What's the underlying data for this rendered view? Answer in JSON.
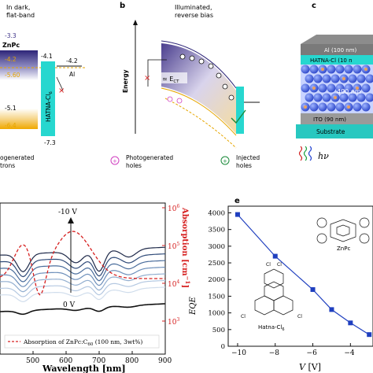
{
  "panel_a": {
    "title_line1": "In dark,",
    "title_line2": "flat-band",
    "level_top": "-3.3",
    "znpc_label": "ZnPc",
    "level_42_left": "-4.2",
    "level_60": "-5.60",
    "level_51": "-5.1",
    "level_64": "-6.4",
    "level_41": "-4.1",
    "level_42_right": "-4.2",
    "level_73": "-7.3",
    "al_label": "Al",
    "hatna_label": "HATNA-Cl",
    "hatna_sub": "6",
    "x_mark": "×",
    "colors": {
      "znpc_top": "#3a2f86",
      "gold": "#f0b000",
      "cyan": "#27d7cf"
    }
  },
  "panel_b": {
    "letter": "b",
    "title_line1": "Illuminated,",
    "title_line2": "reverse bias",
    "energy_label": "Energy",
    "ect_label": "≃ E",
    "ect_sub": "CT",
    "x_mark": "×"
  },
  "panel_c": {
    "letter": "c",
    "al": "Al (100 nm)",
    "hatna": "HATNA-Cl",
    "hatna_tail": " (10 n",
    "thickness": "400 nm",
    "ito": "ITO (90 nm)",
    "substrate": "Substrate",
    "hnu": "hν"
  },
  "legend": {
    "electrons": "ogenerated",
    "electrons2": "trons",
    "holes": "Photogenerated",
    "holes2": "holes",
    "injected": "Injected",
    "injected2": "holes"
  },
  "panel_d": {
    "chart_data": {
      "type": "line",
      "xlabel": "Wavelength [nm]",
      "xlim": [
        400,
        900
      ],
      "x_ticks": [
        "500",
        "600",
        "700",
        "800",
        "900"
      ],
      "ylabel_right": "Absorption [cm",
      "ylabel_right_sup": "−1",
      "ylabel_right_tail": "]",
      "right_ticks_base": "10",
      "right_ticks_exp": [
        "3",
        "4",
        "5",
        "6"
      ],
      "annotation_top": "-10 V",
      "annotation_bottom": "0 V",
      "legend_entry": "Absorption of ZnPc:C",
      "legend_sub": "60",
      "legend_tail": " (100 nm, 3wt%)",
      "series": [
        {
          "level": 0.86,
          "color": "#1f2a4a"
        },
        {
          "level": 0.78,
          "color": "#2f4a78"
        },
        {
          "level": 0.7,
          "color": "#4a6d9c"
        },
        {
          "level": 0.62,
          "color": "#6e90bb"
        },
        {
          "level": 0.54,
          "color": "#93afd0"
        },
        {
          "level": 0.46,
          "color": "#b4c8e1"
        },
        {
          "level": 0.38,
          "color": "#d0ddec"
        },
        {
          "level": 0.18,
          "color": "#111111"
        }
      ]
    }
  },
  "panel_e": {
    "letter": "e",
    "chart_data": {
      "type": "line",
      "x": [
        -10,
        -8,
        -6,
        -5,
        -4,
        -3
      ],
      "y": [
        3950,
        2700,
        1700,
        1100,
        700,
        350
      ],
      "xlim": [
        -10.5,
        -2.8
      ],
      "ylim": [
        0,
        4200
      ],
      "x_ticks": [
        "−10",
        "−8",
        "−6",
        "−4"
      ],
      "y_ticks": [
        "0",
        "500",
        "1000",
        "1500",
        "2000",
        "2500",
        "3000",
        "3500",
        "4000"
      ],
      "xlabel": "V",
      "xlabel_unit": " [V]",
      "ylabel": "EQE",
      "color": "#1f3fbf"
    },
    "mol1": "ZnPc",
    "mol2": "Hatna-Cl",
    "mol2_sub": "6",
    "cl": "Cl"
  }
}
